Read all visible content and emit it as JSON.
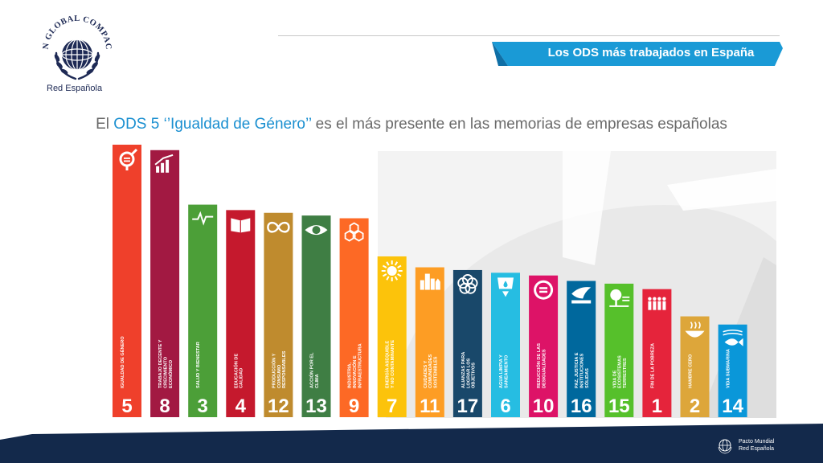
{
  "header": {
    "org_name_arc": "UN GLOBAL COMPACT",
    "org_subtitle": "Red Española",
    "banner_title": "Los ODS más trabajados en España"
  },
  "headline": {
    "pre": "El ",
    "highlight": "ODS 5 ‘’Igualdad de Género’’",
    "post": " es el más presente en las memorias de empresas españolas"
  },
  "colors": {
    "brand_dark": "#13294b",
    "banner_blue": "#1a9ad6",
    "highlight_blue": "#1a8fd0"
  },
  "chart_data": {
    "type": "bar",
    "title": "",
    "xlabel": "",
    "ylabel": "",
    "legend": "none",
    "grid": false,
    "note": "",
    "bars": [
      {
        "number": "5",
        "label": "IGUALDAD DE GÉNERO",
        "value": 100,
        "color": "#ef402b",
        "icon": "gender-equality-icon"
      },
      {
        "number": "8",
        "label": "TRABAJO DECENTE Y CRECIMIENTO ECONÓMICO",
        "value": 98,
        "color": "#a21942",
        "icon": "growth-chart-icon"
      },
      {
        "number": "3",
        "label": "SALUD Y BIENESTAR",
        "value": 78,
        "color": "#4c9f38",
        "icon": "heartbeat-icon"
      },
      {
        "number": "4",
        "label": "EDUCACIÓN DE CALIDAD",
        "value": 76,
        "color": "#c5192d",
        "icon": "book-icon"
      },
      {
        "number": "12",
        "label": "PRODUCCIÓN Y CONSUMO RESPONSABLES",
        "value": 75,
        "color": "#bf8b2e",
        "icon": "infinity-icon"
      },
      {
        "number": "13",
        "label": "ACCIÓN POR EL CLIMA",
        "value": 74,
        "color": "#3f7e44",
        "icon": "eye-globe-icon"
      },
      {
        "number": "9",
        "label": "INDUSTRIA, INNOVACIÓN E INFRAESTRUCTURA",
        "value": 73,
        "color": "#fd6925",
        "icon": "cubes-icon"
      },
      {
        "number": "7",
        "label": "ENERGÍA ASEQUIBLE Y NO CONTAMINANTE",
        "value": 59,
        "color": "#fcc30b",
        "icon": "sun-icon"
      },
      {
        "number": "11",
        "label": "CIUDADES Y COMUNIDADES SOSTENIBLES",
        "value": 55,
        "color": "#fd9d24",
        "icon": "city-icon"
      },
      {
        "number": "17",
        "label": "ALIANZAS PARA LOGRAR LOS OBJETIVOS",
        "value": 54,
        "color": "#19486a",
        "icon": "rings-icon"
      },
      {
        "number": "6",
        "label": "AGUA LIMPIA Y SANEAMIENTO",
        "value": 53,
        "color": "#26bde2",
        "icon": "water-drop-icon"
      },
      {
        "number": "10",
        "label": "REDUCCIÓN DE LAS DESIGUALDADES",
        "value": 52,
        "color": "#dd1367",
        "icon": "equals-icon"
      },
      {
        "number": "16",
        "label": "PAZ, JUSTICIA E INSTITUCIONES SÓLIDAS",
        "value": 50,
        "color": "#00689d",
        "icon": "dove-icon"
      },
      {
        "number": "15",
        "label": "VIDA DE ECOSISTEMAS TERRESTRES",
        "value": 49,
        "color": "#56c02b",
        "icon": "tree-icon"
      },
      {
        "number": "1",
        "label": "FIN DE LA POBREZA",
        "value": 47,
        "color": "#e5243b",
        "icon": "people-icon"
      },
      {
        "number": "2",
        "label": "HAMBRE CERO",
        "value": 37,
        "color": "#dda63a",
        "icon": "bowl-icon"
      },
      {
        "number": "14",
        "label": "VIDA SUBMARINA",
        "value": 34,
        "color": "#0a97d9",
        "icon": "fish-icon"
      }
    ]
  },
  "footer": {
    "line1": "Pacto Mundial",
    "line2": "Red Española"
  }
}
